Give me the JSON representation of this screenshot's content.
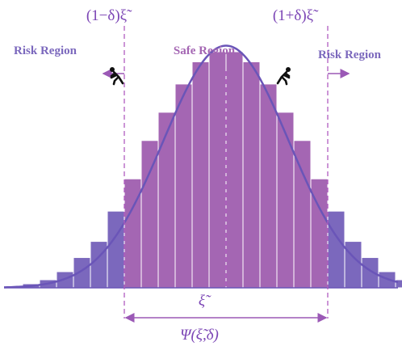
{
  "labels": {
    "left_threshold": "(1−δ)ξ̃",
    "right_threshold": "(1+δ)ξ̃",
    "risk_left": "Risk Region",
    "safe": "Safe Region",
    "risk_right": "Risk Region",
    "center": "ξ̃",
    "interval": "Ψ(ξ̃,δ)"
  },
  "colors": {
    "risk": "#7b68bd",
    "safe": "#a466b3",
    "curve": "#6a55b8",
    "text": "#7b45b5",
    "dashed": "#b05cc0",
    "arrow": "#9b59b6",
    "person": "#111111"
  },
  "icons": {
    "left_person": "person-pushing-left-icon",
    "right_person": "person-pushing-right-icon"
  },
  "chart_data": {
    "type": "bar",
    "bars": [
      {
        "x": 1,
        "height": 0.02,
        "region": "risk"
      },
      {
        "x": 2,
        "height": 0.04,
        "region": "risk"
      },
      {
        "x": 3,
        "height": 0.08,
        "region": "risk"
      },
      {
        "x": 4,
        "height": 0.15,
        "region": "risk"
      },
      {
        "x": 5,
        "height": 0.23,
        "region": "risk"
      },
      {
        "x": 6,
        "height": 0.38,
        "region": "risk"
      },
      {
        "x": 7,
        "height": 0.54,
        "region": "safe"
      },
      {
        "x": 8,
        "height": 0.73,
        "region": "safe"
      },
      {
        "x": 9,
        "height": 0.87,
        "region": "safe"
      },
      {
        "x": 10,
        "height": 1.01,
        "region": "safe"
      },
      {
        "x": 11,
        "height": 1.12,
        "region": "safe"
      },
      {
        "x": 12,
        "height": 1.17,
        "region": "safe"
      },
      {
        "x": 13,
        "height": 1.17,
        "region": "safe"
      },
      {
        "x": 14,
        "height": 1.12,
        "region": "safe"
      },
      {
        "x": 15,
        "height": 1.01,
        "region": "safe"
      },
      {
        "x": 16,
        "height": 0.87,
        "region": "safe"
      },
      {
        "x": 17,
        "height": 0.73,
        "region": "safe"
      },
      {
        "x": 18,
        "height": 0.54,
        "region": "safe"
      },
      {
        "x": 19,
        "height": 0.38,
        "region": "risk"
      },
      {
        "x": 20,
        "height": 0.23,
        "region": "risk"
      },
      {
        "x": 21,
        "height": 0.15,
        "region": "risk"
      },
      {
        "x": 22,
        "height": 0.08,
        "region": "risk"
      },
      {
        "x": 23,
        "height": 0.04,
        "region": "risk"
      }
    ],
    "curve": {
      "mean": 12.5,
      "sd": 3.7,
      "peak": 1.2
    },
    "ylim": [
      0,
      1.25
    ],
    "thresholds": {
      "lower": 6.5,
      "center": 12.5,
      "upper": 18.5
    }
  }
}
